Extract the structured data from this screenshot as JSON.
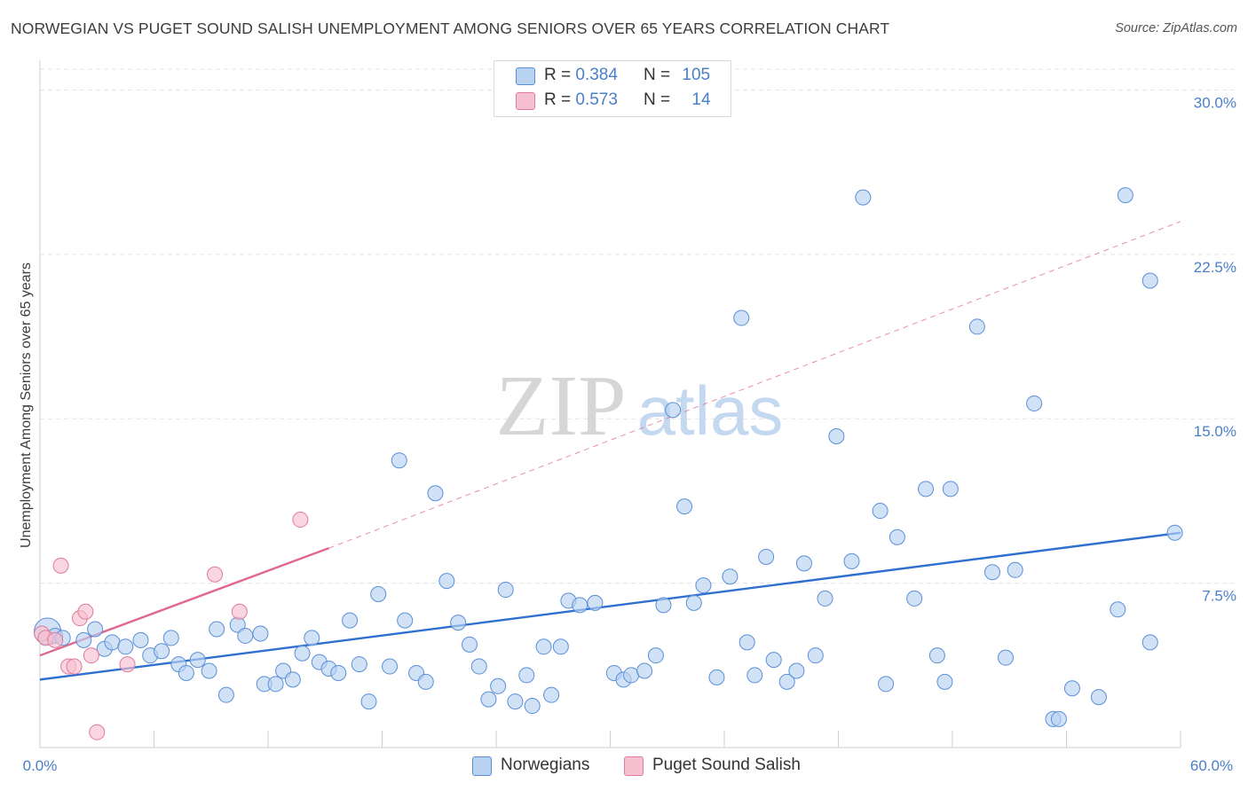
{
  "title": "NORWEGIAN VS PUGET SOUND SALISH UNEMPLOYMENT AMONG SENIORS OVER 65 YEARS CORRELATION CHART",
  "source": "Source: ZipAtlas.com",
  "watermark": {
    "zip": "ZIP",
    "atlas": "atlas"
  },
  "colors": {
    "blue_fill": "#b8d2f2",
    "blue_stroke": "#5a8fd6",
    "blue_line": "#2f6fd0",
    "pink_fill": "#f7c0d0",
    "pink_stroke": "#e07a9c",
    "pink_line": "#e06890",
    "axis_label": "#4a80c8",
    "grid": "#e2e2e2"
  },
  "legend_top": {
    "rows": [
      {
        "r_label": "R =",
        "r_value": "0.384",
        "n_label": "N =",
        "n_value": "105"
      },
      {
        "r_label": "R =",
        "r_value": "0.573",
        "n_label": "N =",
        "n_value": "14"
      }
    ]
  },
  "legend_bottom": [
    "Norwegians",
    "Puget Sound Salish"
  ],
  "chart_data": {
    "type": "scatter",
    "xlabel": "",
    "ylabel": "Unemployment Among Seniors over 65 years",
    "xlim": [
      0,
      60
    ],
    "ylim": [
      0,
      30
    ],
    "x_tick_labels": [
      "0.0%",
      "60.0%"
    ],
    "y_ticks": [
      7.5,
      15.0,
      22.5,
      30.0
    ],
    "y_tick_labels": [
      "7.5%",
      "15.0%",
      "22.5%",
      "30.0%"
    ],
    "grid": true,
    "legend_position": "top-center",
    "series": [
      {
        "name": "Norwegians",
        "r": 0.384,
        "n": 105,
        "trend": {
          "x0": 0,
          "y0": 3.1,
          "x1": 60,
          "y1": 9.8,
          "style": "solid"
        },
        "points": [
          [
            0.4,
            5.3
          ],
          [
            0.8,
            5.1
          ],
          [
            1.2,
            5.0
          ],
          [
            2.3,
            4.9
          ],
          [
            2.9,
            5.4
          ],
          [
            3.4,
            4.5
          ],
          [
            3.8,
            4.8
          ],
          [
            4.5,
            4.6
          ],
          [
            5.3,
            4.9
          ],
          [
            5.8,
            4.2
          ],
          [
            6.4,
            4.4
          ],
          [
            6.9,
            5.0
          ],
          [
            7.3,
            3.8
          ],
          [
            7.7,
            3.4
          ],
          [
            8.3,
            4.0
          ],
          [
            8.9,
            3.5
          ],
          [
            9.3,
            5.4
          ],
          [
            9.8,
            2.4
          ],
          [
            10.4,
            5.6
          ],
          [
            10.8,
            5.1
          ],
          [
            11.6,
            5.2
          ],
          [
            11.8,
            2.9
          ],
          [
            12.4,
            2.9
          ],
          [
            12.8,
            3.5
          ],
          [
            13.3,
            3.1
          ],
          [
            13.8,
            4.3
          ],
          [
            14.3,
            5.0
          ],
          [
            14.7,
            3.9
          ],
          [
            15.2,
            3.6
          ],
          [
            15.7,
            3.4
          ],
          [
            16.3,
            5.8
          ],
          [
            16.8,
            3.8
          ],
          [
            17.3,
            2.1
          ],
          [
            17.8,
            7.0
          ],
          [
            18.4,
            3.7
          ],
          [
            18.9,
            13.1
          ],
          [
            19.2,
            5.8
          ],
          [
            19.8,
            3.4
          ],
          [
            20.3,
            3.0
          ],
          [
            20.8,
            11.6
          ],
          [
            21.4,
            7.6
          ],
          [
            22.0,
            5.7
          ],
          [
            22.6,
            4.7
          ],
          [
            23.1,
            3.7
          ],
          [
            23.6,
            2.2
          ],
          [
            24.1,
            2.8
          ],
          [
            24.5,
            7.2
          ],
          [
            25.0,
            2.1
          ],
          [
            25.6,
            3.3
          ],
          [
            25.9,
            1.9
          ],
          [
            26.5,
            4.6
          ],
          [
            26.9,
            2.4
          ],
          [
            27.4,
            4.6
          ],
          [
            27.8,
            6.7
          ],
          [
            28.4,
            6.5
          ],
          [
            29.2,
            6.6
          ],
          [
            30.2,
            3.4
          ],
          [
            30.7,
            3.1
          ],
          [
            31.1,
            3.3
          ],
          [
            31.8,
            3.5
          ],
          [
            32.4,
            4.2
          ],
          [
            32.8,
            6.5
          ],
          [
            33.3,
            15.4
          ],
          [
            33.9,
            11.0
          ],
          [
            34.4,
            6.6
          ],
          [
            34.9,
            7.4
          ],
          [
            35.6,
            3.2
          ],
          [
            36.3,
            7.8
          ],
          [
            36.9,
            19.6
          ],
          [
            37.2,
            4.8
          ],
          [
            37.6,
            3.3
          ],
          [
            38.2,
            8.7
          ],
          [
            38.6,
            4.0
          ],
          [
            39.3,
            3.0
          ],
          [
            39.8,
            3.5
          ],
          [
            40.2,
            8.4
          ],
          [
            40.8,
            4.2
          ],
          [
            41.3,
            6.8
          ],
          [
            41.9,
            14.2
          ],
          [
            42.7,
            8.5
          ],
          [
            43.3,
            25.1
          ],
          [
            44.2,
            10.8
          ],
          [
            44.5,
            2.9
          ],
          [
            45.1,
            9.6
          ],
          [
            46.0,
            6.8
          ],
          [
            46.6,
            11.8
          ],
          [
            47.2,
            4.2
          ],
          [
            47.6,
            3.0
          ],
          [
            47.9,
            11.8
          ],
          [
            49.3,
            19.2
          ],
          [
            50.1,
            8.0
          ],
          [
            50.8,
            4.1
          ],
          [
            51.3,
            8.1
          ],
          [
            52.3,
            15.7
          ],
          [
            53.3,
            1.3
          ],
          [
            53.6,
            1.3
          ],
          [
            54.3,
            2.7
          ],
          [
            55.7,
            2.3
          ],
          [
            56.7,
            6.3
          ],
          [
            57.1,
            25.2
          ],
          [
            58.4,
            21.3
          ],
          [
            58.4,
            4.8
          ],
          [
            59.7,
            9.8
          ]
        ]
      },
      {
        "name": "Puget Sound Salish",
        "r": 0.573,
        "n": 14,
        "trend": {
          "x0": 0,
          "y0": 4.2,
          "x1": 15.2,
          "y1": 9.1,
          "x2": 60,
          "y2": 24.0,
          "style": "solid-then-dashed"
        },
        "points": [
          [
            0.1,
            5.2
          ],
          [
            0.3,
            5.0
          ],
          [
            0.8,
            4.9
          ],
          [
            1.1,
            8.3
          ],
          [
            1.5,
            3.7
          ],
          [
            1.8,
            3.7
          ],
          [
            2.1,
            5.9
          ],
          [
            2.4,
            6.2
          ],
          [
            2.7,
            4.2
          ],
          [
            3.0,
            0.7
          ],
          [
            4.6,
            3.8
          ],
          [
            9.2,
            7.9
          ],
          [
            10.5,
            6.2
          ],
          [
            13.7,
            10.4
          ]
        ]
      }
    ]
  }
}
